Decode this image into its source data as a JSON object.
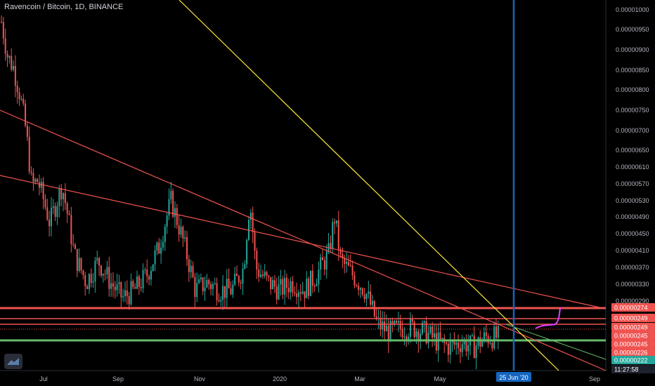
{
  "header": {
    "title": "Ravencoin / Bitcoin, 1D, BINANCE"
  },
  "chart_data": {
    "type": "candlestick",
    "symbol": "Ravencoin / Bitcoin",
    "interval": "1D",
    "exchange": "BINANCE",
    "y_scale": "log",
    "ylim": [
      2.2e-06,
      1.03e-06
    ],
    "y_ticks": [
      "0.00001000",
      "0.00000950",
      "0.00000900",
      "0.00000850",
      "0.00000800",
      "0.00000750",
      "0.00000700",
      "0.00000650",
      "0.00000610",
      "0.00000570",
      "0.00000530",
      "0.00000490",
      "0.00000450",
      "0.00000410",
      "0.00000370",
      "0.00000330",
      "0.00000290"
    ],
    "x_ticks": [
      "Jul",
      "Sep",
      "Nov",
      "2020",
      "Mar",
      "May",
      "Sep"
    ],
    "price_tags": [
      {
        "label": "0.00000274",
        "color": "#ef5350"
      },
      {
        "label": "0.00000249",
        "color": "#ef5350"
      },
      {
        "label": "0.00000249",
        "color": "#ef5350"
      },
      {
        "label": "0.00000245",
        "color": "#ef5350"
      },
      {
        "label": "0.00000245",
        "color": "#ef5350"
      },
      {
        "label": "0.00000226",
        "color": "#ef5350"
      },
      {
        "label": "0.00000222",
        "color": "#26a69a"
      },
      {
        "label": "11:27:58",
        "color": "#1e222d"
      }
    ],
    "cursor_date": "25 Jun '20",
    "price_path": [
      [
        0,
        9.5e-06
      ],
      [
        0.01,
        8.2e-06
      ],
      [
        0.02,
        7.8e-06
      ],
      [
        0.03,
        7e-06
      ],
      [
        0.04,
        6e-06
      ],
      [
        0.05,
        4.7e-06
      ],
      [
        0.06,
        4.8e-06
      ],
      [
        0.08,
        4e-06
      ],
      [
        0.1,
        4.7e-06
      ],
      [
        0.12,
        3.5e-06
      ],
      [
        0.14,
        3.1e-06
      ],
      [
        0.16,
        3.4e-06
      ],
      [
        0.18,
        3.1e-06
      ],
      [
        0.2,
        2.9e-06
      ],
      [
        0.22,
        3e-06
      ],
      [
        0.24,
        3.2e-06
      ],
      [
        0.26,
        3.6e-06
      ],
      [
        0.28,
        4.4e-06
      ],
      [
        0.3,
        3.7e-06
      ],
      [
        0.32,
        3e-06
      ],
      [
        0.34,
        3.1e-06
      ],
      [
        0.36,
        3e-06
      ],
      [
        0.38,
        3e-06
      ],
      [
        0.4,
        3.3e-06
      ],
      [
        0.41,
        4.4e-06
      ],
      [
        0.42,
        3.3e-06
      ],
      [
        0.44,
        3.1e-06
      ],
      [
        0.46,
        3e-06
      ],
      [
        0.48,
        3.1e-06
      ],
      [
        0.5,
        3e-06
      ],
      [
        0.52,
        3.2e-06
      ],
      [
        0.54,
        3.5e-06
      ],
      [
        0.55,
        4.1e-06
      ],
      [
        0.56,
        3.4e-06
      ],
      [
        0.58,
        3.2e-06
      ],
      [
        0.6,
        3e-06
      ],
      [
        0.62,
        2.6e-06
      ],
      [
        0.64,
        2.5e-06
      ],
      [
        0.66,
        2.55e-06
      ],
      [
        0.68,
        2.55e-06
      ],
      [
        0.7,
        2.5e-06
      ],
      [
        0.72,
        2.4e-06
      ],
      [
        0.74,
        2.35e-06
      ],
      [
        0.76,
        2.4e-06
      ],
      [
        0.78,
        2.35e-06
      ],
      [
        0.8,
        2.45e-06
      ],
      [
        0.82,
        2.45e-06
      ]
    ]
  }
}
